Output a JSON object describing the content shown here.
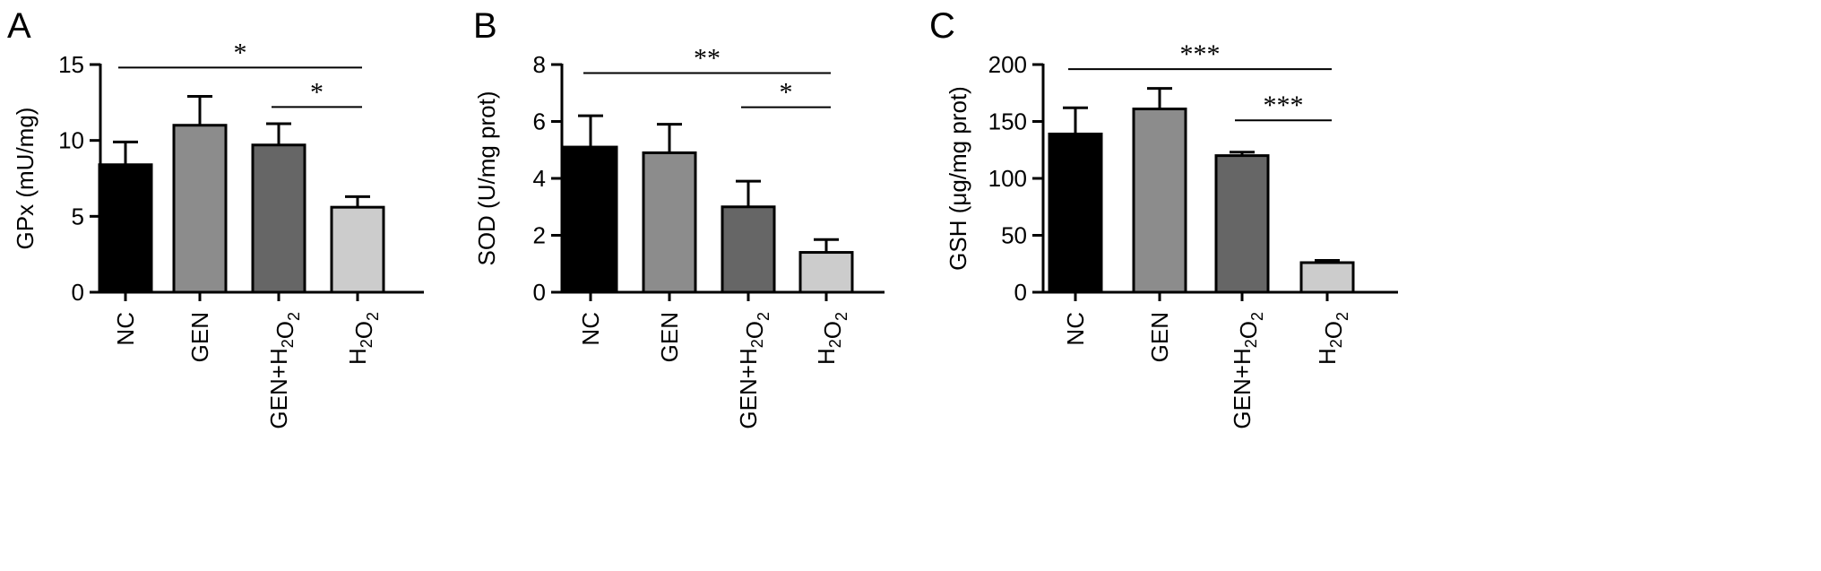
{
  "chart_data": [
    {
      "type": "bar",
      "panel": "A",
      "ylabel": "GPx (mU/mg)",
      "ylim": [
        0,
        15
      ],
      "yticks": [
        0,
        5,
        10,
        15
      ],
      "categories": [
        "NC",
        "GEN",
        "GEN+H2O2",
        "H2O2"
      ],
      "values": [
        8.4,
        11.0,
        9.7,
        5.6
      ],
      "errors": [
        1.5,
        1.9,
        1.4,
        0.7
      ],
      "bar_colors": [
        "#000000",
        "#8c8c8c",
        "#666666",
        "#cccccc"
      ],
      "significance": [
        {
          "from": "NC",
          "to": "H2O2",
          "label": "*",
          "y": 14.8
        },
        {
          "from": "GEN+H2O2",
          "to": "H2O2",
          "label": "*",
          "y": 12.2
        }
      ]
    },
    {
      "type": "bar",
      "panel": "B",
      "ylabel": "SOD (U/mg prot)",
      "ylim": [
        0,
        8
      ],
      "yticks": [
        0,
        2,
        4,
        6,
        8
      ],
      "categories": [
        "NC",
        "GEN",
        "GEN+H2O2",
        "H2O2"
      ],
      "values": [
        5.1,
        4.9,
        3.0,
        1.4
      ],
      "errors": [
        1.1,
        1.0,
        0.9,
        0.45
      ],
      "bar_colors": [
        "#000000",
        "#8c8c8c",
        "#666666",
        "#cccccc"
      ],
      "significance": [
        {
          "from": "NC",
          "to": "H2O2",
          "label": "**",
          "y": 7.7
        },
        {
          "from": "GEN+H2O2",
          "to": "H2O2",
          "label": "*",
          "y": 6.5
        }
      ]
    },
    {
      "type": "bar",
      "panel": "C",
      "ylabel": "GSH (μg/mg prot)",
      "ylim": [
        0,
        200
      ],
      "yticks": [
        0,
        50,
        100,
        150,
        200
      ],
      "categories": [
        "NC",
        "GEN",
        "GEN+H2O2",
        "H2O2"
      ],
      "values": [
        139,
        161,
        120,
        26
      ],
      "errors": [
        23,
        18,
        3,
        2
      ],
      "bar_colors": [
        "#000000",
        "#8c8c8c",
        "#666666",
        "#cccccc"
      ],
      "significance": [
        {
          "from": "NC",
          "to": "H2O2",
          "label": "***",
          "y": 196
        },
        {
          "from": "GEN+H2O2",
          "to": "H2O2",
          "label": "***",
          "y": 151
        }
      ]
    }
  ]
}
